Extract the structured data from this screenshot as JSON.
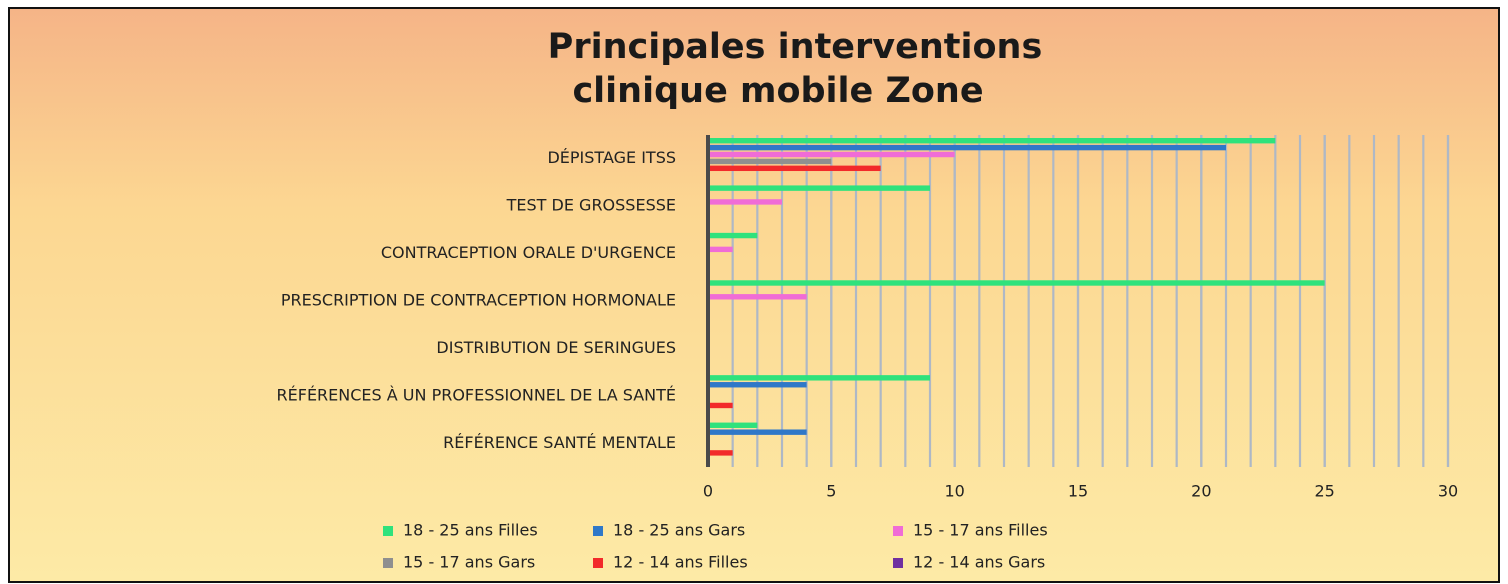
{
  "chart_data": {
    "type": "barh",
    "title": [
      "Principales interventions",
      "clinique mobile Zone"
    ],
    "categories": [
      "DÉPISTAGE ITSS",
      "TEST DE GROSSESSE",
      "CONTRACEPTION ORALE D'URGENCE",
      "PRESCRIPTION DE CONTRACEPTION HORMONALE",
      "DISTRIBUTION DE SERINGUES",
      "RÉFÉRENCES À UN PROFESSIONNEL DE LA SANTÉ",
      "RÉFÉRENCE SANTÉ MENTALE"
    ],
    "series": [
      {
        "name": "18 - 25 ans Filles",
        "color": "#2fe27c",
        "values": [
          23,
          9,
          2,
          25,
          0,
          9,
          2
        ]
      },
      {
        "name": "18 - 25 ans Gars",
        "color": "#2f78c8",
        "values": [
          21,
          0,
          0,
          0,
          0,
          4,
          4
        ]
      },
      {
        "name": "15 - 17 ans Filles",
        "color": "#f06cd6",
        "values": [
          10,
          3,
          1,
          4,
          0,
          0,
          0
        ]
      },
      {
        "name": "15 - 17 ans Gars",
        "color": "#8f8f8f",
        "values": [
          5,
          0,
          0,
          0,
          0,
          0,
          0
        ]
      },
      {
        "name": "12 - 14 ans Filles",
        "color": "#f22a2a",
        "values": [
          7,
          0,
          0,
          0,
          0,
          1,
          1
        ]
      },
      {
        "name": "12 - 14 ans Gars",
        "color": "#7030a0",
        "values": [
          0,
          0,
          0,
          0,
          0,
          0,
          0
        ]
      }
    ],
    "xlim": [
      0,
      30
    ],
    "xticks": [
      0,
      5,
      10,
      15,
      20,
      25,
      30
    ],
    "grid": true,
    "minor_grid": 1,
    "legend": "bottom"
  }
}
